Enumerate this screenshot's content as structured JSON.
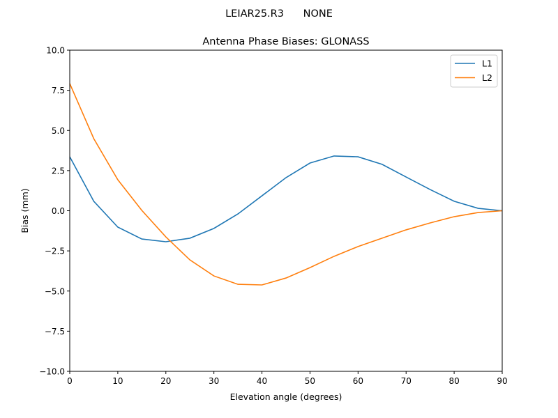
{
  "suptitle": "LEIAR25.R3      NONE",
  "chart_data": {
    "type": "line",
    "title": "Antenna Phase Biases: GLONASS",
    "xlabel": "Elevation angle (degrees)",
    "ylabel": "Bias (mm)",
    "xlim": [
      0,
      90
    ],
    "ylim": [
      -10,
      10
    ],
    "xticks": [
      0,
      10,
      20,
      30,
      40,
      50,
      60,
      70,
      80,
      90
    ],
    "yticks": [
      -10.0,
      -7.5,
      -5.0,
      -2.5,
      0.0,
      2.5,
      5.0,
      7.5,
      10.0
    ],
    "xtick_labels": [
      "0",
      "10",
      "20",
      "30",
      "40",
      "50",
      "60",
      "70",
      "80",
      "90"
    ],
    "ytick_labels": [
      "−10.0",
      "−7.5",
      "−5.0",
      "−2.5",
      "0.0",
      "2.5",
      "5.0",
      "7.5",
      "10.0"
    ],
    "grid": false,
    "legend_position": "top-right",
    "x": [
      0,
      5,
      10,
      15,
      20,
      25,
      30,
      35,
      40,
      45,
      50,
      55,
      60,
      65,
      70,
      75,
      80,
      85,
      90
    ],
    "series": [
      {
        "name": "L1",
        "color": "#1f77b4",
        "values": [
          3.36,
          0.59,
          -1.02,
          -1.76,
          -1.93,
          -1.71,
          -1.1,
          -0.2,
          0.93,
          2.06,
          2.97,
          3.41,
          3.36,
          2.89,
          2.1,
          1.32,
          0.59,
          0.15,
          0.0
        ]
      },
      {
        "name": "L2",
        "color": "#ff7f0e",
        "values": [
          7.92,
          4.49,
          1.93,
          0.02,
          -1.63,
          -3.06,
          -4.06,
          -4.58,
          -4.62,
          -4.19,
          -3.54,
          -2.84,
          -2.23,
          -1.71,
          -1.19,
          -0.76,
          -0.37,
          -0.11,
          0.0
        ]
      }
    ]
  }
}
